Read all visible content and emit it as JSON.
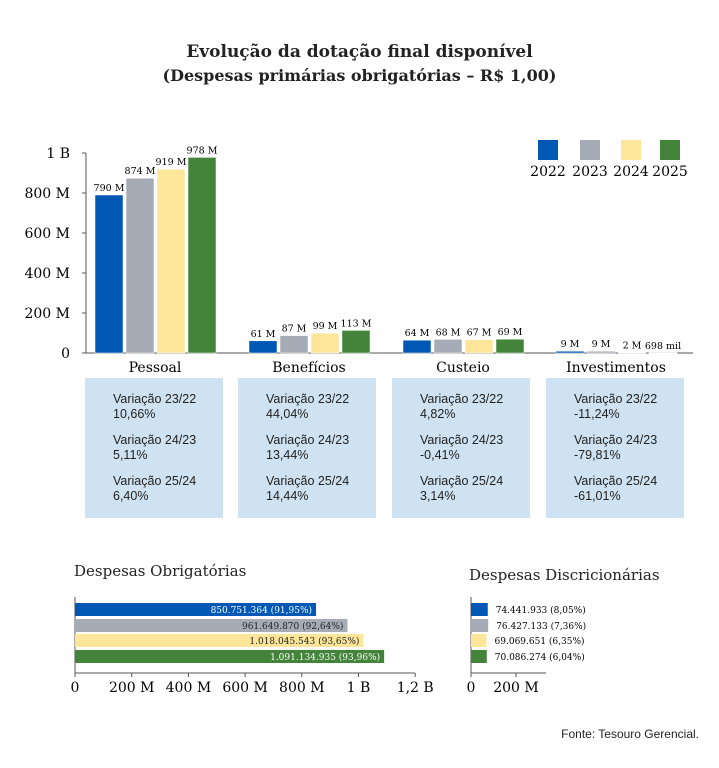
{
  "title": "Evolução da dotação final disponível",
  "subtitle": "(Despesas primárias obrigatórias – R$ 1,00)",
  "source": "Fonte: Tesouro Gerencial.",
  "colors": {
    "2022": "#0057b4",
    "2023": "#a5acb6",
    "2024": "#fde59a",
    "2025": "#43833a"
  },
  "chart_data": [
    {
      "type": "bar",
      "title": "",
      "ylim": [
        0,
        1000000000
      ],
      "yticks": [
        "0",
        "200 M",
        "400 M",
        "600 M",
        "800 M",
        "1 B"
      ],
      "categories": [
        "Pessoal",
        "Benefícios",
        "Custeio",
        "Investimentos"
      ],
      "series": [
        {
          "name": "2022",
          "values": [
            790,
            61,
            64,
            9
          ],
          "labels": [
            "790 M",
            "61 M",
            "64 M",
            "9 M"
          ]
        },
        {
          "name": "2023",
          "values": [
            874,
            87,
            68,
            9
          ],
          "labels": [
            "874 M",
            "87 M",
            "68 M",
            "9 M"
          ]
        },
        {
          "name": "2024",
          "values": [
            919,
            99,
            67,
            2
          ],
          "labels": [
            "919 M",
            "99 M",
            "67 M",
            "2 M"
          ]
        },
        {
          "name": "2025",
          "values": [
            978,
            113,
            69,
            0.698
          ],
          "labels": [
            "978 M",
            "113 M",
            "69 M",
            "698 mil"
          ]
        }
      ],
      "unit": "millions",
      "legend": "top-right"
    },
    {
      "type": "bar",
      "orientation": "horizontal",
      "title": "Despesas Obrigatórias",
      "xlim": [
        0,
        1200000000
      ],
      "xticks": [
        "0",
        "200 M",
        "400 M",
        "600 M",
        "800 M",
        "1 B",
        "1,2 B"
      ],
      "series_names": [
        "2022",
        "2023",
        "2024",
        "2025"
      ],
      "values": [
        850751364,
        961649870,
        1018045543,
        1091134935
      ],
      "labels": [
        "850.751.364 (91,95%)",
        "961.649.870 (92,64%)",
        "1.018.045.543 (93,65%)",
        "1.091.134.935 (93,96%)"
      ]
    },
    {
      "type": "bar",
      "orientation": "horizontal",
      "title": "Despesas Discricionárias",
      "xlim": [
        0,
        200000000
      ],
      "xticks": [
        "0",
        "200 M"
      ],
      "series_names": [
        "2022",
        "2023",
        "2024",
        "2025"
      ],
      "values": [
        74441933,
        76427133,
        69069651,
        70086274
      ],
      "labels": [
        "74.441.933 (8,05%)",
        "76.427.133 (7,36%)",
        "69.069.651 (6,35%)",
        "70.086.274 (6,04%)"
      ]
    }
  ],
  "variations": [
    {
      "category": "Pessoal",
      "items": [
        {
          "label": "Variação 23/22",
          "value": "10,66%"
        },
        {
          "label": "Variação 24/23",
          "value": "5,11%"
        },
        {
          "label": "Variação 25/24",
          "value": "6,40%"
        }
      ]
    },
    {
      "category": "Benefícios",
      "items": [
        {
          "label": "Variação 23/22",
          "value": "44,04%"
        },
        {
          "label": "Variação 24/23",
          "value": "13,44%"
        },
        {
          "label": "Variação 25/24",
          "value": "14,44%"
        }
      ]
    },
    {
      "category": "Custeio",
      "items": [
        {
          "label": "Variação 23/22",
          "value": "4,82%"
        },
        {
          "label": "Variação 24/23",
          "value": "-0,41%"
        },
        {
          "label": "Variação 25/24",
          "value": "3,14%"
        }
      ]
    },
    {
      "category": "Investimentos",
      "items": [
        {
          "label": "Variação 23/22",
          "value": "-11,24%"
        },
        {
          "label": "Variação 24/23",
          "value": "-79,81%"
        },
        {
          "label": "Variação 25/24",
          "value": "-61,01%"
        }
      ]
    }
  ]
}
